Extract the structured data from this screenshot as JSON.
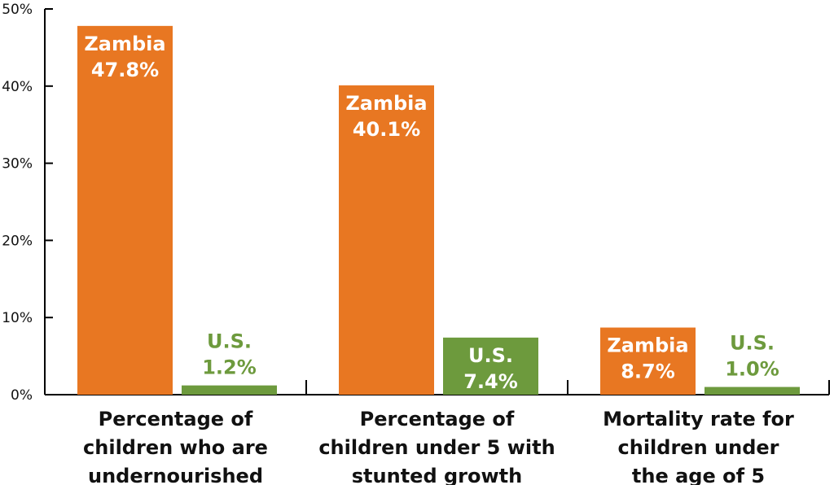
{
  "chart_data": {
    "type": "bar",
    "categories": [
      [
        "Percentage of",
        "children who are",
        "undernourished"
      ],
      [
        "Percentage of",
        "children under 5 with",
        "stunted growth"
      ],
      [
        "Mortality rate for",
        "children under",
        "the age of 5"
      ]
    ],
    "series": [
      {
        "name": "Zambia",
        "color": "#E87722",
        "values": [
          47.8,
          40.1,
          8.7
        ],
        "labels": [
          "47.8%",
          "40.1%",
          "8.7%"
        ]
      },
      {
        "name": "U.S.",
        "color": "#6D9A3D",
        "values": [
          1.2,
          7.4,
          1.0
        ],
        "labels": [
          "1.2%",
          "7.4%",
          "1.0%"
        ]
      }
    ],
    "ylim": [
      0,
      50
    ],
    "yticks": [
      {
        "value": 0,
        "label": "0%"
      },
      {
        "value": 10,
        "label": "10%"
      },
      {
        "value": 20,
        "label": "20%"
      },
      {
        "value": 30,
        "label": "30%"
      },
      {
        "value": 40,
        "label": "40%"
      },
      {
        "value": 50,
        "label": "50%"
      }
    ],
    "grid": false,
    "legend": "none"
  }
}
